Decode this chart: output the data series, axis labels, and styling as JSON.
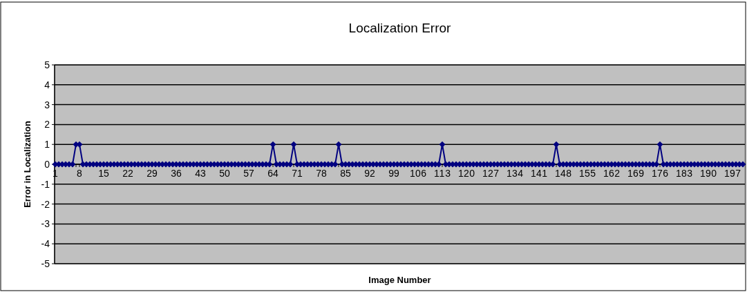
{
  "chart_data": {
    "type": "line",
    "title": "Localization Error",
    "xlabel": "Image Number",
    "ylabel": "Error in Localization",
    "categories": [
      "1",
      null,
      null,
      null,
      null,
      null,
      null,
      "8",
      null,
      null,
      null,
      null,
      null,
      null,
      "15",
      null,
      null,
      null,
      null,
      null,
      null,
      "22",
      null,
      null,
      null,
      null,
      null,
      null,
      "29",
      null,
      null,
      null,
      null,
      null,
      null,
      "36",
      null,
      null,
      null,
      null,
      null,
      null,
      "43",
      null,
      null,
      null,
      null,
      null,
      null,
      "50",
      null,
      null,
      null,
      null,
      null,
      null,
      "57",
      null,
      null,
      null,
      null,
      null,
      null,
      "64",
      null,
      null,
      null,
      null,
      null,
      null,
      "71",
      null,
      null,
      null,
      null,
      null,
      null,
      "78",
      null,
      null,
      null,
      null,
      null,
      null,
      "85",
      null,
      null,
      null,
      null,
      null,
      null,
      "92",
      null,
      null,
      null,
      null,
      null,
      null,
      "99",
      null,
      null,
      null,
      null,
      null,
      null,
      "106",
      null,
      null,
      null,
      null,
      null,
      null,
      "113",
      null,
      null,
      null,
      null,
      null,
      null,
      "120",
      null,
      null,
      null,
      null,
      null,
      null,
      "127",
      null,
      null,
      null,
      null,
      null,
      null,
      "134",
      null,
      null,
      null,
      null,
      null,
      null,
      "141",
      null,
      null,
      null,
      null,
      null,
      null,
      "148",
      null,
      null,
      null,
      null,
      null,
      null,
      "155",
      null,
      null,
      null,
      null,
      null,
      null,
      "162",
      null,
      null,
      null,
      null,
      null,
      null,
      "169",
      null,
      null,
      null,
      null,
      null,
      null,
      "176",
      null,
      null,
      null,
      null,
      null,
      null,
      "183",
      null,
      null,
      null,
      null,
      null,
      null,
      "190",
      null,
      null,
      null,
      null,
      null,
      null,
      "197",
      null,
      null,
      null
    ],
    "series": [
      {
        "color": "#000080",
        "values": [
          0,
          0,
          0,
          0,
          0,
          0,
          1,
          1,
          0,
          0,
          0,
          0,
          0,
          0,
          0,
          0,
          0,
          0,
          0,
          0,
          0,
          0,
          0,
          0,
          0,
          0,
          0,
          0,
          0,
          0,
          0,
          0,
          0,
          0,
          0,
          0,
          0,
          0,
          0,
          0,
          0,
          0,
          0,
          0,
          0,
          0,
          0,
          0,
          0,
          0,
          0,
          0,
          0,
          0,
          0,
          0,
          0,
          0,
          0,
          0,
          0,
          0,
          0,
          1,
          0,
          0,
          0,
          0,
          0,
          1,
          0,
          0,
          0,
          0,
          0,
          0,
          0,
          0,
          0,
          0,
          0,
          0,
          1,
          0,
          0,
          0,
          0,
          0,
          0,
          0,
          0,
          0,
          0,
          0,
          0,
          0,
          0,
          0,
          0,
          0,
          0,
          0,
          0,
          0,
          0,
          0,
          0,
          0,
          0,
          0,
          0,
          0,
          1,
          0,
          0,
          0,
          0,
          0,
          0,
          0,
          0,
          0,
          0,
          0,
          0,
          0,
          0,
          0,
          0,
          0,
          0,
          0,
          0,
          0,
          0,
          0,
          0,
          0,
          0,
          0,
          0,
          0,
          0,
          0,
          0,
          1,
          0,
          0,
          0,
          0,
          0,
          0,
          0,
          0,
          0,
          0,
          0,
          0,
          0,
          0,
          0,
          0,
          0,
          0,
          0,
          0,
          0,
          0,
          0,
          0,
          0,
          0,
          0,
          0,
          0,
          1,
          0,
          0,
          0,
          0,
          0,
          0,
          0,
          0,
          0,
          0,
          0,
          0,
          0,
          0,
          0,
          0,
          0,
          0,
          0,
          0,
          0,
          0,
          0,
          0
        ]
      }
    ],
    "ylim": [
      -5,
      5
    ],
    "yticks": [
      -5,
      -4,
      -3,
      -2,
      -1,
      0,
      1,
      2,
      3,
      4,
      5
    ],
    "grid": "y",
    "marker": "diamond",
    "line_style": "solid"
  }
}
